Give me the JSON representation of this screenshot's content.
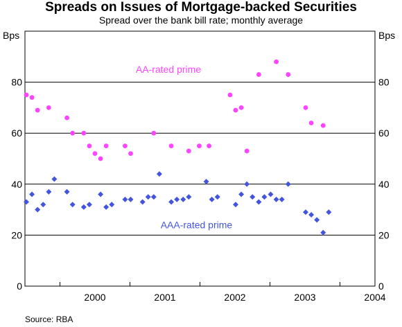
{
  "chart_data": {
    "type": "scatter",
    "title": "Spreads on Issues of Mortgage-backed Securities",
    "subtitle": "Spread over the bank bill rate; monthly average",
    "ylabel_left": "Bps",
    "ylabel_right": "Bps",
    "ylim": [
      0,
      100
    ],
    "yticks": [
      0,
      20,
      40,
      60,
      80
    ],
    "x_years": [
      "2000",
      "2001",
      "2002",
      "2003",
      "2004"
    ],
    "xlim": [
      1999.5,
      2004.5
    ],
    "grid": true,
    "source": "Source: RBA",
    "colors": {
      "aa": "#ff44ff",
      "aaa": "#4455dd"
    },
    "series": [
      {
        "name": "AA-rated prime",
        "marker": "circle",
        "label_position": [
          2001.55,
          85
        ],
        "points": [
          [
            1999.52,
            75
          ],
          [
            1999.6,
            74
          ],
          [
            1999.68,
            69
          ],
          [
            1999.84,
            70
          ],
          [
            2000.1,
            66
          ],
          [
            2000.18,
            60
          ],
          [
            2000.34,
            60
          ],
          [
            2000.42,
            55
          ],
          [
            2000.5,
            52
          ],
          [
            2000.58,
            50
          ],
          [
            2000.66,
            55
          ],
          [
            2000.93,
            55
          ],
          [
            2001.01,
            52
          ],
          [
            2001.34,
            60
          ],
          [
            2001.59,
            55
          ],
          [
            2001.84,
            53
          ],
          [
            2001.99,
            55
          ],
          [
            2002.13,
            55
          ],
          [
            2002.43,
            75
          ],
          [
            2002.51,
            69
          ],
          [
            2002.59,
            70
          ],
          [
            2002.67,
            53
          ],
          [
            2002.84,
            83
          ],
          [
            2003.09,
            88
          ],
          [
            2003.26,
            83
          ],
          [
            2003.51,
            70
          ],
          [
            2003.59,
            64
          ],
          [
            2003.76,
            63
          ]
        ]
      },
      {
        "name": "AAA-rated prime",
        "marker": "diamond",
        "label_position": [
          2001.95,
          24
        ],
        "points": [
          [
            1999.52,
            33
          ],
          [
            1999.6,
            36
          ],
          [
            1999.68,
            30
          ],
          [
            1999.76,
            32
          ],
          [
            1999.84,
            37
          ],
          [
            1999.92,
            42
          ],
          [
            2000.1,
            37
          ],
          [
            2000.18,
            32
          ],
          [
            2000.34,
            31
          ],
          [
            2000.42,
            32
          ],
          [
            2000.58,
            36
          ],
          [
            2000.66,
            31
          ],
          [
            2000.74,
            32
          ],
          [
            2000.93,
            34
          ],
          [
            2001.01,
            34
          ],
          [
            2001.18,
            33
          ],
          [
            2001.26,
            35
          ],
          [
            2001.34,
            35
          ],
          [
            2001.42,
            44
          ],
          [
            2001.59,
            33
          ],
          [
            2001.67,
            34
          ],
          [
            2001.76,
            34
          ],
          [
            2001.84,
            35
          ],
          [
            2002.09,
            41
          ],
          [
            2002.17,
            34
          ],
          [
            2002.25,
            35
          ],
          [
            2002.51,
            32
          ],
          [
            2002.59,
            36
          ],
          [
            2002.67,
            40
          ],
          [
            2002.75,
            35
          ],
          [
            2002.84,
            33
          ],
          [
            2002.92,
            35
          ],
          [
            2003.01,
            36
          ],
          [
            2003.09,
            34
          ],
          [
            2003.17,
            34
          ],
          [
            2003.26,
            40
          ],
          [
            2003.51,
            29
          ],
          [
            2003.59,
            28
          ],
          [
            2003.67,
            26
          ],
          [
            2003.76,
            21
          ],
          [
            2003.84,
            29
          ]
        ]
      }
    ]
  }
}
